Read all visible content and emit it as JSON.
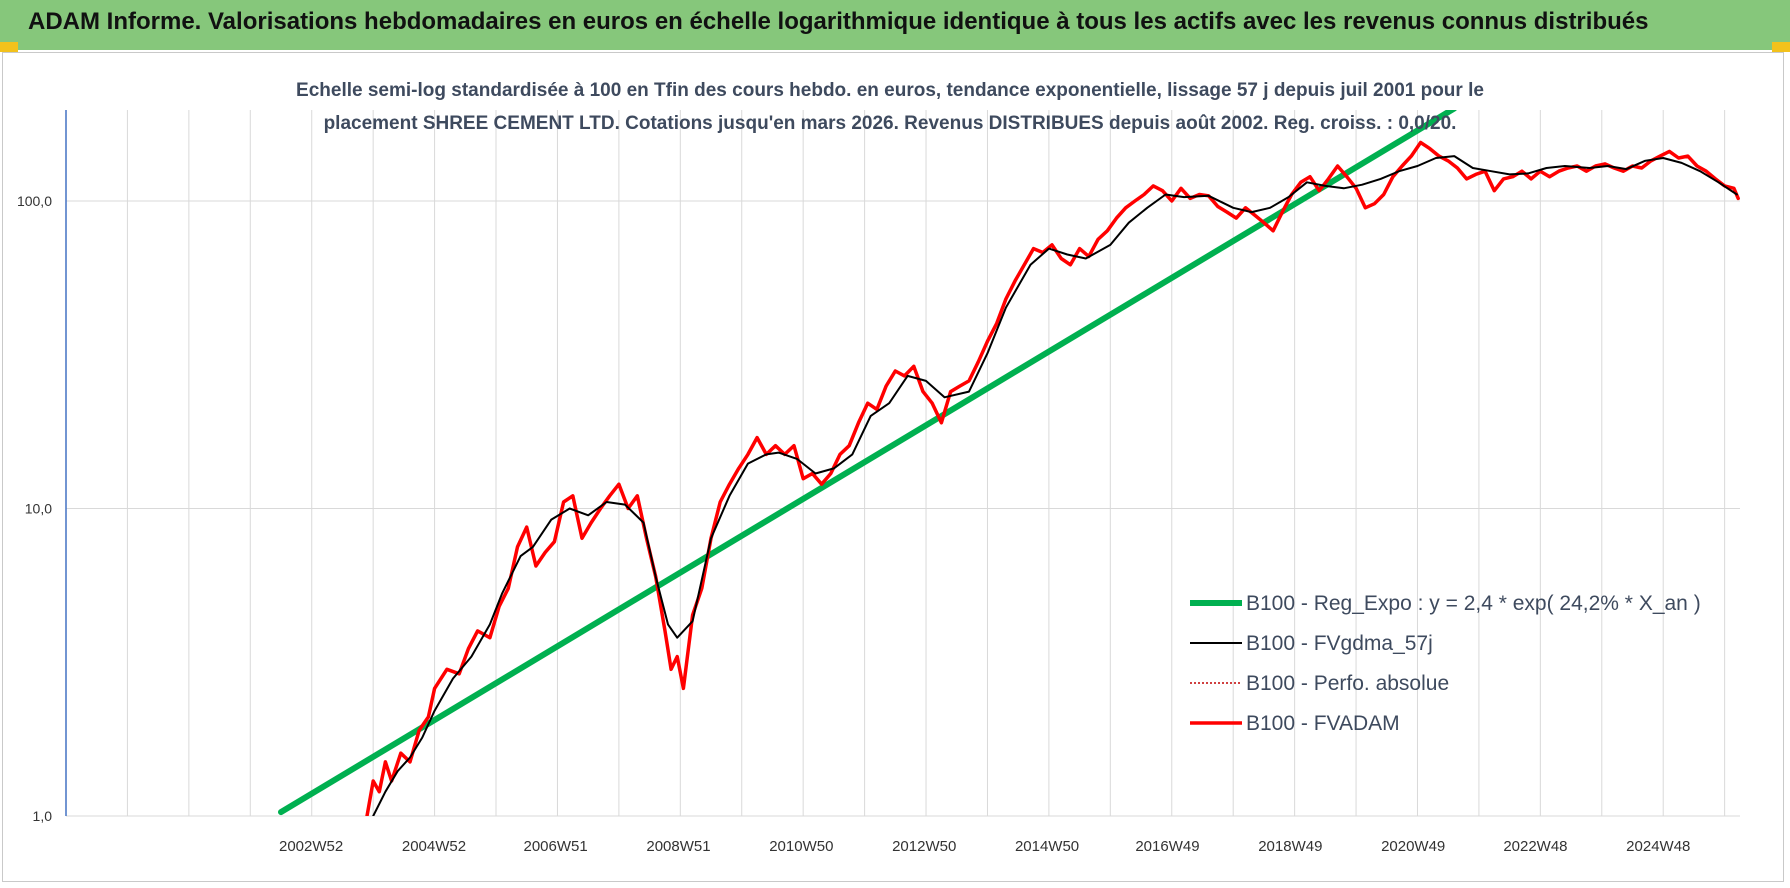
{
  "header": {
    "title": "ADAM Informe. Valorisations hebdomadaires en euros en échelle logarithmique identique à tous les actifs avec les revenus connus distribués"
  },
  "colors": {
    "header_bg": "#86c77b",
    "corner": "#f3c21c",
    "regression": "#00b050",
    "smoothed": "#000000",
    "perfo": "#c00000",
    "fvadam": "#ff0000",
    "grid": "#d9d9d9",
    "axis": "#4472c4"
  },
  "chart_data": {
    "type": "line",
    "subtitle": [
      "Echelle semi-log standardisée à 100 en Tfin des cours hebdo. en euros, tendance exponentielle, lissage 57 j depuis juil 2001 pour le",
      "placement SHREE CEMENT LTD. Cotations jusqu'en mars 2026. Revenus DISTRIBUES depuis août 2002. Reg. croiss. : 0,0/20."
    ],
    "y_scale": "log",
    "ylim": [
      1,
      200
    ],
    "y_ticks": [
      1,
      10,
      100
    ],
    "y_tick_labels": [
      "1,0",
      "10,0",
      "100,0"
    ],
    "xlim": [
      1999.0,
      2026.25
    ],
    "x_ticks": [
      2002.99,
      2004.99,
      2006.97,
      2008.97,
      2010.97,
      2012.97,
      2014.97,
      2016.93,
      2018.93,
      2020.93,
      2022.92,
      2024.92
    ],
    "x_tick_labels": [
      "2002W52",
      "2004W52",
      "2006W51",
      "2008W51",
      "2010W50",
      "2012W50",
      "2014W50",
      "2016W49",
      "2018W49",
      "2020W49",
      "2022W48",
      "2024W48"
    ],
    "grid": true,
    "legend_position": "bottom-right",
    "series": [
      {
        "name": "B100 - Reg_Expo : y = 2,4 * exp( 24,2% * X_an )",
        "style": "green-thick",
        "x": [
          2002.5,
          2021.6
        ],
        "y": [
          1.03,
          200
        ]
      },
      {
        "name": "B100 - FVgdma_57j",
        "style": "black-thin",
        "x": [
          2004.0,
          2004.2,
          2004.4,
          2004.6,
          2004.8,
          2005.0,
          2005.3,
          2005.6,
          2005.9,
          2006.1,
          2006.4,
          2006.6,
          2006.9,
          2007.2,
          2007.5,
          2007.8,
          2008.1,
          2008.4,
          2008.6,
          2008.8,
          2008.95,
          2009.2,
          2009.5,
          2009.8,
          2010.1,
          2010.4,
          2010.6,
          2010.9,
          2011.2,
          2011.5,
          2011.8,
          2012.1,
          2012.4,
          2012.7,
          2013.0,
          2013.3,
          2013.7,
          2014.0,
          2014.3,
          2014.7,
          2015.0,
          2015.3,
          2015.6,
          2016.0,
          2016.3,
          2016.6,
          2016.9,
          2017.2,
          2017.6,
          2018.0,
          2018.3,
          2018.6,
          2018.9,
          2019.2,
          2019.5,
          2019.8,
          2020.1,
          2020.4,
          2020.7,
          2021.0,
          2021.3,
          2021.6,
          2021.9,
          2022.2,
          2022.5,
          2022.8,
          2023.1,
          2023.4,
          2023.8,
          2024.1,
          2024.4,
          2024.7,
          2025.0,
          2025.3,
          2025.6,
          2025.9,
          2026.2
        ],
        "y": [
          1.0,
          1.2,
          1.4,
          1.55,
          1.8,
          2.2,
          2.8,
          3.3,
          4.2,
          5.3,
          7.0,
          7.5,
          9.2,
          10.0,
          9.5,
          10.5,
          10.3,
          9.0,
          6.0,
          4.2,
          3.8,
          4.3,
          8.0,
          11.0,
          14.0,
          15.0,
          15.2,
          14.5,
          13.0,
          13.5,
          15.0,
          20.0,
          22.0,
          27.0,
          26.0,
          23.0,
          24.0,
          32.0,
          45.0,
          62.0,
          70.0,
          67.0,
          65.0,
          72.0,
          85.0,
          95.0,
          105.0,
          103.0,
          104.0,
          95.0,
          92.0,
          95.0,
          103.0,
          115.0,
          112.0,
          110.0,
          113.0,
          118.0,
          125.0,
          130.0,
          138.0,
          140.0,
          128.0,
          125.0,
          122.0,
          123.0,
          128.0,
          130.0,
          128.0,
          130.0,
          127.0,
          135.0,
          138.0,
          133.0,
          125.0,
          115.0,
          105.0
        ]
      },
      {
        "name": "B100 - Perfo. absolue",
        "style": "red-dotted",
        "x": [],
        "y": []
      },
      {
        "name": "B100 - FVADAM",
        "style": "red-thick",
        "x": [
          2003.9,
          2004.0,
          2004.1,
          2004.2,
          2004.3,
          2004.45,
          2004.6,
          2004.75,
          2004.9,
          2005.0,
          2005.2,
          2005.4,
          2005.55,
          2005.7,
          2005.9,
          2006.05,
          2006.2,
          2006.35,
          2006.5,
          2006.65,
          2006.8,
          2006.95,
          2007.1,
          2007.25,
          2007.4,
          2007.55,
          2007.7,
          2007.85,
          2008.0,
          2008.15,
          2008.3,
          2008.45,
          2008.6,
          2008.75,
          2008.85,
          2008.95,
          2009.05,
          2009.2,
          2009.35,
          2009.5,
          2009.65,
          2009.8,
          2009.95,
          2010.1,
          2010.25,
          2010.4,
          2010.55,
          2010.7,
          2010.85,
          2011.0,
          2011.15,
          2011.3,
          2011.45,
          2011.6,
          2011.75,
          2011.9,
          2012.05,
          2012.2,
          2012.35,
          2012.5,
          2012.65,
          2012.8,
          2012.95,
          2013.1,
          2013.25,
          2013.4,
          2013.55,
          2013.7,
          2013.85,
          2014.0,
          2014.15,
          2014.3,
          2014.45,
          2014.6,
          2014.75,
          2014.9,
          2015.05,
          2015.2,
          2015.35,
          2015.5,
          2015.65,
          2015.8,
          2015.95,
          2016.1,
          2016.25,
          2016.4,
          2016.55,
          2016.7,
          2016.85,
          2017.0,
          2017.15,
          2017.3,
          2017.45,
          2017.6,
          2017.75,
          2017.9,
          2018.05,
          2018.2,
          2018.35,
          2018.5,
          2018.65,
          2018.8,
          2018.95,
          2019.1,
          2019.25,
          2019.4,
          2019.55,
          2019.7,
          2019.85,
          2020.0,
          2020.15,
          2020.3,
          2020.45,
          2020.6,
          2020.75,
          2020.9,
          2021.05,
          2021.2,
          2021.35,
          2021.5,
          2021.65,
          2021.8,
          2021.95,
          2022.1,
          2022.25,
          2022.4,
          2022.55,
          2022.7,
          2022.85,
          2023.0,
          2023.15,
          2023.3,
          2023.45,
          2023.6,
          2023.75,
          2023.9,
          2024.05,
          2024.2,
          2024.35,
          2024.5,
          2024.65,
          2024.8,
          2024.95,
          2025.1,
          2025.25,
          2025.4,
          2025.55,
          2025.7,
          2025.85,
          2026.0,
          2026.15,
          2026.22
        ],
        "y": [
          1.0,
          1.3,
          1.2,
          1.5,
          1.3,
          1.6,
          1.5,
          1.9,
          2.1,
          2.6,
          3.0,
          2.9,
          3.5,
          4.0,
          3.8,
          4.8,
          5.5,
          7.5,
          8.7,
          6.5,
          7.2,
          7.8,
          10.5,
          11.0,
          8.0,
          9.0,
          10.0,
          11.0,
          12.0,
          10.0,
          11.0,
          8.0,
          6.0,
          4.0,
          3.0,
          3.3,
          2.6,
          4.5,
          5.5,
          8.0,
          10.5,
          12.0,
          13.5,
          15.0,
          17.0,
          15.0,
          16.0,
          15.0,
          16.0,
          12.5,
          13.0,
          12.0,
          13.0,
          15.0,
          16.0,
          19.0,
          22.0,
          21.0,
          25.0,
          28.0,
          27.0,
          29.0,
          24.0,
          22.0,
          19.0,
          24.0,
          25.0,
          26.0,
          30.0,
          35.0,
          40.0,
          48.0,
          55.0,
          62.0,
          70.0,
          68.0,
          72.0,
          65.0,
          62.0,
          70.0,
          66.0,
          75.0,
          80.0,
          88.0,
          95.0,
          100.0,
          105.0,
          112.0,
          108.0,
          100.0,
          110.0,
          102.0,
          105.0,
          104.0,
          96.0,
          92.0,
          88.0,
          95.0,
          90.0,
          85.0,
          80.0,
          92.0,
          105.0,
          115.0,
          120.0,
          108.0,
          118.0,
          130.0,
          120.0,
          110.0,
          95.0,
          98.0,
          105.0,
          120.0,
          130.0,
          140.0,
          155.0,
          148.0,
          140.0,
          135.0,
          128.0,
          118.0,
          122.0,
          125.0,
          108.0,
          118.0,
          120.0,
          125.0,
          118.0,
          125.0,
          120.0,
          125.0,
          128.0,
          130.0,
          125.0,
          130.0,
          132.0,
          128.0,
          125.0,
          130.0,
          128.0,
          135.0,
          140.0,
          145.0,
          138.0,
          140.0,
          130.0,
          125.0,
          118.0,
          112.0,
          110.0,
          102.0
        ]
      }
    ]
  }
}
